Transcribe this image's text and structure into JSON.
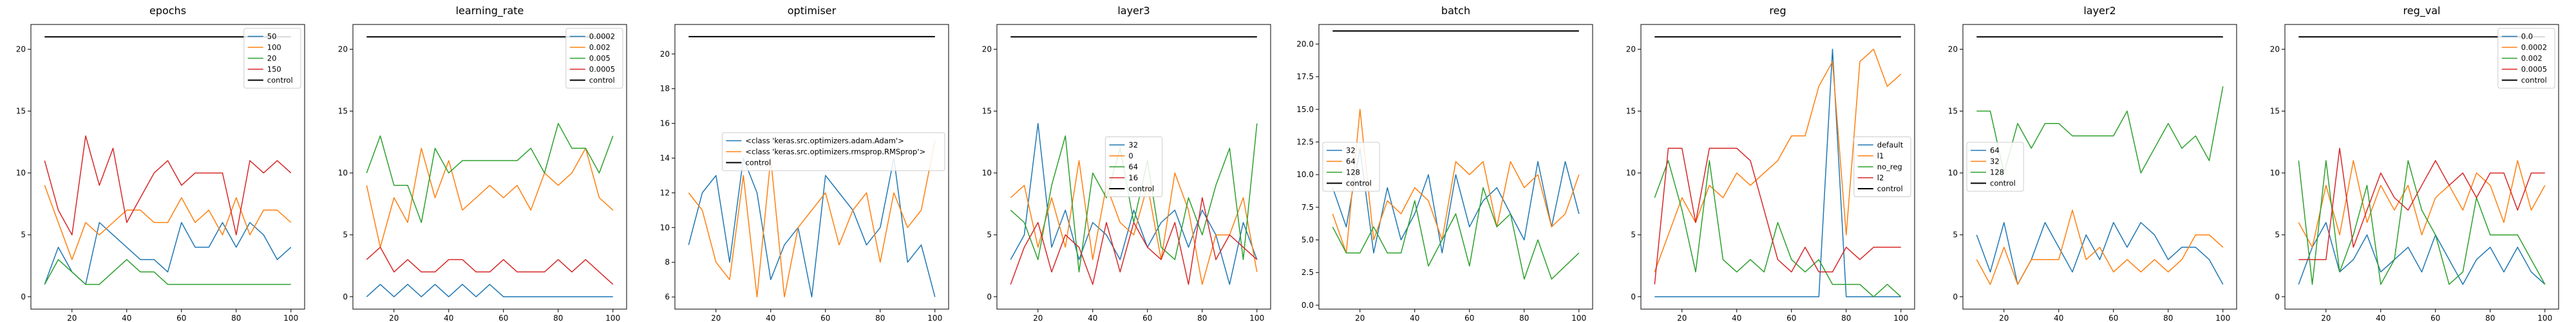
{
  "palette": [
    "#1f77b4",
    "#ff7f0e",
    "#2ca02c",
    "#d62728",
    "#9467bd"
  ],
  "control_color": "#000000",
  "chart_data": [
    {
      "type": "line",
      "title": "epochs",
      "x": [
        10,
        15,
        20,
        25,
        30,
        35,
        40,
        45,
        50,
        55,
        60,
        65,
        70,
        75,
        80,
        85,
        90,
        95,
        100
      ],
      "xticks": [
        20,
        40,
        60,
        80,
        100
      ],
      "xlim": [
        5,
        105
      ],
      "ylim": [
        -1,
        22
      ],
      "yticks": [
        0,
        5,
        10,
        15,
        20
      ],
      "yticklabels": [
        "0",
        "5",
        "10",
        "15",
        "20"
      ],
      "legend_pos": "top-right",
      "series": [
        {
          "name": "50",
          "values": [
            1,
            4,
            2,
            1,
            6,
            5,
            4,
            3,
            3,
            2,
            6,
            4,
            4,
            6,
            4,
            6,
            5,
            3,
            4
          ]
        },
        {
          "name": "100",
          "values": [
            9,
            6,
            3,
            6,
            5,
            6,
            7,
            7,
            6,
            6,
            8,
            6,
            7,
            5,
            8,
            5,
            7,
            7,
            6
          ]
        },
        {
          "name": "20",
          "values": [
            1,
            3,
            2,
            1,
            1,
            2,
            3,
            2,
            2,
            1,
            1,
            1,
            1,
            1,
            1,
            1,
            1,
            1,
            1
          ]
        },
        {
          "name": "150",
          "values": [
            11,
            7,
            5,
            13,
            9,
            12,
            6,
            8,
            10,
            11,
            9,
            10,
            10,
            10,
            5,
            11,
            10,
            11,
            10
          ]
        },
        {
          "name": "control",
          "values": [
            21,
            21,
            21,
            21,
            21,
            21,
            21,
            21,
            21,
            21,
            21,
            21,
            21,
            21,
            21,
            21,
            21,
            21,
            21
          ],
          "control": true
        }
      ]
    },
    {
      "type": "line",
      "title": "learning_rate",
      "x": [
        10,
        15,
        20,
        25,
        30,
        35,
        40,
        45,
        50,
        55,
        60,
        65,
        70,
        75,
        80,
        85,
        90,
        95,
        100
      ],
      "xticks": [
        20,
        40,
        60,
        80,
        100
      ],
      "xlim": [
        5,
        105
      ],
      "ylim": [
        -1,
        22
      ],
      "yticks": [
        0,
        5,
        10,
        15,
        20
      ],
      "yticklabels": [
        "0",
        "5",
        "10",
        "15",
        "20"
      ],
      "legend_pos": "top-right",
      "series": [
        {
          "name": "0.0002",
          "values": [
            0,
            1,
            0,
            1,
            0,
            1,
            0,
            1,
            0,
            1,
            0,
            0,
            0,
            0,
            0,
            0,
            0,
            0,
            0
          ]
        },
        {
          "name": "0.002",
          "values": [
            9,
            4,
            8,
            6,
            12,
            8,
            11,
            7,
            8,
            9,
            8,
            9,
            7,
            10,
            9,
            10,
            12,
            8,
            7
          ]
        },
        {
          "name": "0.005",
          "values": [
            10,
            13,
            9,
            9,
            6,
            12,
            10,
            11,
            11,
            11,
            11,
            11,
            12,
            10,
            14,
            12,
            12,
            10,
            13
          ]
        },
        {
          "name": "0.0005",
          "values": [
            3,
            4,
            2,
            3,
            2,
            2,
            3,
            3,
            2,
            2,
            3,
            2,
            2,
            2,
            3,
            2,
            3,
            2,
            1
          ]
        },
        {
          "name": "control",
          "values": [
            21,
            21,
            21,
            21,
            21,
            21,
            21,
            21,
            21,
            21,
            21,
            21,
            21,
            21,
            21,
            21,
            21,
            21,
            21
          ],
          "control": true
        }
      ]
    },
    {
      "type": "line",
      "title": "optimiser",
      "x": [
        10,
        15,
        20,
        25,
        30,
        35,
        40,
        45,
        50,
        55,
        60,
        65,
        70,
        75,
        80,
        85,
        90,
        95,
        100
      ],
      "xticks": [
        20,
        40,
        60,
        80,
        100
      ],
      "xlim": [
        5,
        105
      ],
      "ylim": [
        5.3,
        21.7
      ],
      "yticks": [
        6,
        8,
        10,
        12,
        14,
        16,
        18,
        20
      ],
      "yticklabels": [
        "6",
        "8",
        "10",
        "12",
        "14",
        "16",
        "18",
        "20"
      ],
      "legend_pos": "center-right",
      "series": [
        {
          "name": "<class 'keras.src.optimizers.adam.Adam'>",
          "values": [
            9,
            12,
            13,
            8,
            14,
            12,
            7,
            9,
            10,
            6,
            13,
            12,
            11,
            9,
            10,
            14,
            8,
            9,
            6
          ]
        },
        {
          "name": "<class 'keras.src.optimizers.rmsprop.RMSprop'>",
          "values": [
            12,
            11,
            8,
            7,
            13,
            6,
            14,
            6,
            10,
            11,
            12,
            9,
            11,
            12,
            8,
            12,
            10,
            11,
            15
          ]
        },
        {
          "name": "control",
          "values": [
            21,
            21,
            21,
            21,
            21,
            21,
            21,
            21,
            21,
            21,
            21,
            21,
            21,
            21,
            21,
            21,
            21,
            21,
            21
          ],
          "control": true
        }
      ]
    },
    {
      "type": "line",
      "title": "layer3",
      "x": [
        10,
        15,
        20,
        25,
        30,
        35,
        40,
        45,
        50,
        55,
        60,
        65,
        70,
        75,
        80,
        85,
        90,
        95,
        100
      ],
      "xticks": [
        20,
        40,
        60,
        80,
        100
      ],
      "xlim": [
        5,
        105
      ],
      "ylim": [
        -1,
        22
      ],
      "yticks": [
        0,
        5,
        10,
        15,
        20
      ],
      "yticklabels": [
        "0",
        "5",
        "10",
        "15",
        "20"
      ],
      "legend_pos": "center",
      "series": [
        {
          "name": "32",
          "values": [
            3,
            5,
            14,
            4,
            7,
            3,
            6,
            5,
            3,
            7,
            4,
            6,
            7,
            4,
            7,
            5,
            1,
            6,
            3
          ]
        },
        {
          "name": "0",
          "values": [
            8,
            9,
            4,
            8,
            4,
            11,
            3,
            9,
            6,
            5,
            9,
            3,
            10,
            7,
            1,
            5,
            5,
            8,
            2
          ]
        },
        {
          "name": "64",
          "values": [
            7,
            6,
            3,
            9,
            13,
            2,
            10,
            8,
            12,
            6,
            11,
            4,
            3,
            8,
            5,
            9,
            12,
            3,
            14
          ]
        },
        {
          "name": "16",
          "values": [
            1,
            4,
            6,
            2,
            5,
            4,
            1,
            6,
            2,
            6,
            4,
            3,
            6,
            1,
            8,
            3,
            5,
            4,
            3
          ]
        },
        {
          "name": "control",
          "values": [
            21,
            21,
            21,
            21,
            21,
            21,
            21,
            21,
            21,
            21,
            21,
            21,
            21,
            21,
            21,
            21,
            21,
            21,
            21
          ],
          "control": true
        }
      ]
    },
    {
      "type": "line",
      "title": "batch",
      "x": [
        10,
        15,
        20,
        25,
        30,
        35,
        40,
        45,
        50,
        55,
        60,
        65,
        70,
        75,
        80,
        85,
        90,
        95,
        100
      ],
      "xticks": [
        20,
        40,
        60,
        80,
        100
      ],
      "xlim": [
        5,
        105
      ],
      "ylim": [
        -0.3,
        21.5
      ],
      "yticks": [
        0,
        2.5,
        5,
        7.5,
        10,
        12.5,
        15,
        17.5,
        20
      ],
      "yticklabels": [
        "0.0",
        "2.5",
        "5.0",
        "7.5",
        "10.0",
        "12.5",
        "15.0",
        "17.5",
        "20.0"
      ],
      "legend_pos": "center-left",
      "series": [
        {
          "name": "32",
          "values": [
            9,
            6,
            12,
            4,
            9,
            5,
            7,
            10,
            4,
            10,
            6,
            8,
            9,
            7,
            5,
            11,
            6,
            11,
            7
          ]
        },
        {
          "name": "64",
          "values": [
            7,
            4,
            15,
            5,
            8,
            7,
            9,
            8,
            5,
            11,
            10,
            11,
            6,
            11,
            9,
            10,
            6,
            7,
            10
          ]
        },
        {
          "name": "128",
          "values": [
            6,
            4,
            4,
            6,
            4,
            4,
            8,
            3,
            5,
            7,
            3,
            9,
            6,
            7,
            2,
            5,
            2,
            3,
            4
          ]
        },
        {
          "name": "control",
          "values": [
            21,
            21,
            21,
            21,
            21,
            21,
            21,
            21,
            21,
            21,
            21,
            21,
            21,
            21,
            21,
            21,
            21,
            21,
            21
          ],
          "control": true
        }
      ]
    },
    {
      "type": "line",
      "title": "reg",
      "x": [
        10,
        15,
        20,
        25,
        30,
        35,
        40,
        45,
        50,
        55,
        60,
        65,
        70,
        75,
        80,
        85,
        90,
        95,
        100
      ],
      "xticks": [
        20,
        40,
        60,
        80,
        100
      ],
      "xlim": [
        5,
        105
      ],
      "ylim": [
        -1,
        22
      ],
      "yticks": [
        0,
        5,
        10,
        15,
        20
      ],
      "yticklabels": [
        "0",
        "5",
        "10",
        "15",
        "20"
      ],
      "legend_pos": "center-right",
      "series": [
        {
          "name": "default",
          "values": [
            0,
            0,
            0,
            0,
            0,
            0,
            0,
            0,
            0,
            0,
            0,
            0,
            0,
            20,
            0,
            0,
            0,
            0,
            0
          ]
        },
        {
          "name": "l1",
          "values": [
            2,
            5,
            8,
            6,
            9,
            8,
            10,
            9,
            10,
            11,
            13,
            13,
            17,
            19,
            5,
            19,
            20,
            17,
            18
          ]
        },
        {
          "name": "no_reg",
          "values": [
            8,
            11,
            7,
            2,
            11,
            3,
            2,
            3,
            2,
            6,
            3,
            2,
            3,
            1,
            1,
            1,
            0,
            1,
            0
          ]
        },
        {
          "name": "l2",
          "values": [
            1,
            12,
            12,
            6,
            12,
            12,
            12,
            11,
            7,
            3,
            2,
            4,
            2,
            2,
            4,
            3,
            4,
            4,
            4
          ]
        },
        {
          "name": "control",
          "values": [
            21,
            21,
            21,
            21,
            21,
            21,
            21,
            21,
            21,
            21,
            21,
            21,
            21,
            21,
            21,
            21,
            21,
            21,
            21
          ],
          "control": true
        }
      ]
    },
    {
      "type": "line",
      "title": "layer2",
      "x": [
        10,
        15,
        20,
        25,
        30,
        35,
        40,
        45,
        50,
        55,
        60,
        65,
        70,
        75,
        80,
        85,
        90,
        95,
        100
      ],
      "xticks": [
        20,
        40,
        60,
        80,
        100
      ],
      "xlim": [
        5,
        105
      ],
      "ylim": [
        -1,
        22
      ],
      "yticks": [
        0,
        5,
        10,
        15,
        20
      ],
      "yticklabels": [
        "0",
        "5",
        "10",
        "15",
        "20"
      ],
      "legend_pos": "center-left",
      "series": [
        {
          "name": "64",
          "values": [
            5,
            2,
            6,
            1,
            3,
            6,
            4,
            2,
            5,
            3,
            6,
            4,
            6,
            5,
            3,
            4,
            4,
            3,
            1
          ]
        },
        {
          "name": "32",
          "values": [
            3,
            1,
            4,
            1,
            3,
            3,
            3,
            7,
            3,
            4,
            2,
            3,
            2,
            3,
            2,
            3,
            5,
            5,
            4
          ]
        },
        {
          "name": "128",
          "values": [
            15,
            15,
            10,
            14,
            12,
            14,
            14,
            13,
            13,
            13,
            13,
            15,
            10,
            12,
            14,
            12,
            13,
            11,
            17
          ]
        },
        {
          "name": "control",
          "values": [
            21,
            21,
            21,
            21,
            21,
            21,
            21,
            21,
            21,
            21,
            21,
            21,
            21,
            21,
            21,
            21,
            21,
            21,
            21
          ],
          "control": true
        }
      ]
    },
    {
      "type": "line",
      "title": "reg_val",
      "x": [
        10,
        15,
        20,
        25,
        30,
        35,
        40,
        45,
        50,
        55,
        60,
        65,
        70,
        75,
        80,
        85,
        90,
        95,
        100
      ],
      "xticks": [
        20,
        40,
        60,
        80,
        100
      ],
      "xlim": [
        5,
        105
      ],
      "ylim": [
        -1,
        22
      ],
      "yticks": [
        0,
        5,
        10,
        15,
        20
      ],
      "yticklabels": [
        "0",
        "5",
        "10",
        "15",
        "20"
      ],
      "legend_pos": "top-right",
      "series": [
        {
          "name": "0.0",
          "values": [
            1,
            4,
            6,
            2,
            3,
            5,
            2,
            3,
            4,
            2,
            5,
            3,
            1,
            3,
            4,
            2,
            4,
            2,
            1
          ]
        },
        {
          "name": "0.0002",
          "values": [
            6,
            4,
            9,
            5,
            11,
            6,
            9,
            7,
            9,
            5,
            8,
            9,
            7,
            10,
            9,
            6,
            11,
            7,
            9
          ]
        },
        {
          "name": "0.002",
          "values": [
            11,
            1,
            11,
            2,
            5,
            9,
            1,
            3,
            11,
            7,
            5,
            1,
            2,
            8,
            5,
            5,
            5,
            3,
            1
          ]
        },
        {
          "name": "0.0005",
          "values": [
            3,
            3,
            3,
            12,
            4,
            7,
            10,
            8,
            7,
            9,
            11,
            9,
            10,
            8,
            10,
            10,
            7,
            10,
            10
          ]
        },
        {
          "name": "control",
          "values": [
            21,
            21,
            21,
            21,
            21,
            21,
            21,
            21,
            21,
            21,
            21,
            21,
            21,
            21,
            21,
            21,
            21,
            21,
            21
          ],
          "control": true
        }
      ]
    }
  ]
}
